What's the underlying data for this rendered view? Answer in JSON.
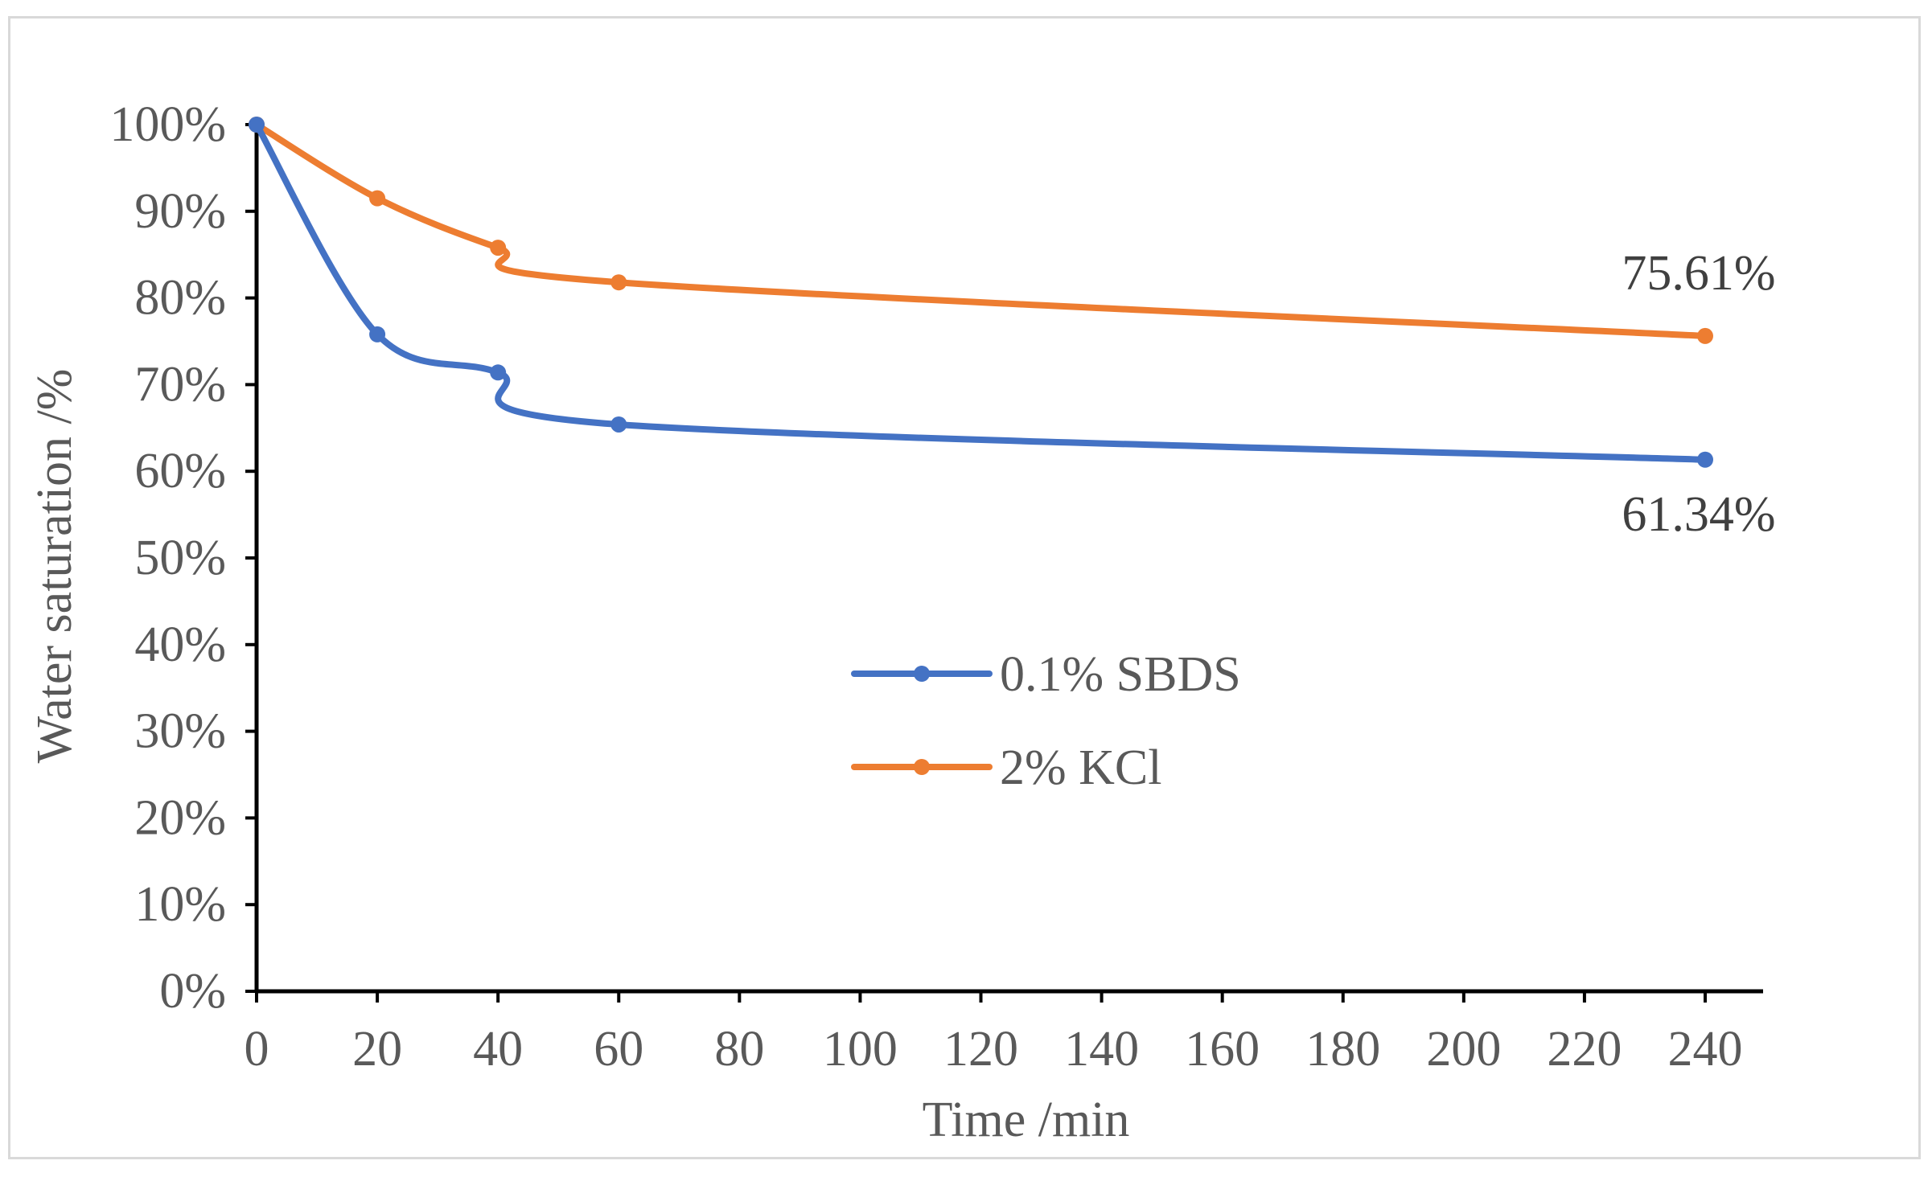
{
  "chart_data": {
    "type": "line",
    "title": "",
    "xlabel": "Time /min",
    "ylabel": "Water saturation /%",
    "xlim": [
      0,
      240
    ],
    "ylim": [
      0,
      100
    ],
    "x_ticks": [
      "0",
      "20",
      "40",
      "60",
      "80",
      "100",
      "120",
      "140",
      "160",
      "180",
      "200",
      "220",
      "240"
    ],
    "y_ticks": [
      "0%",
      "10%",
      "20%",
      "30%",
      "40%",
      "50%",
      "60%",
      "70%",
      "80%",
      "90%",
      "100%"
    ],
    "grid": false,
    "legend_position": "center",
    "smooth": true,
    "series": [
      {
        "name": "0.1% SBDS",
        "color": "#4472C4",
        "x": [
          0,
          20,
          40,
          60,
          240
        ],
        "y": [
          100,
          75.8,
          71.4,
          65.4,
          61.34
        ],
        "end_label": "61.34%"
      },
      {
        "name": "2% KCl",
        "color": "#ED7D31",
        "x": [
          0,
          20,
          40,
          60,
          240
        ],
        "y": [
          100,
          91.5,
          85.8,
          81.8,
          75.61
        ],
        "end_label": "75.61%"
      }
    ]
  }
}
